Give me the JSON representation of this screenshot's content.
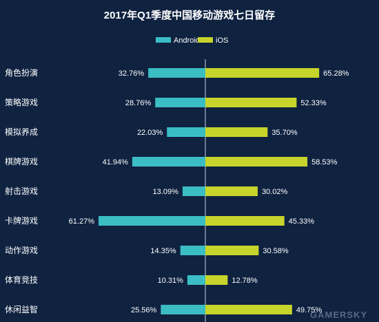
{
  "colors": {
    "background": "#0f2240",
    "android": "#3bbdc4",
    "ios": "#c7d42b",
    "axis": "#c9d3de"
  },
  "chart_data": {
    "type": "bar",
    "orientation": "diverging-horizontal",
    "title": "2017年Q1季度中国移动游戏七日留存",
    "legend_position": "top-center",
    "categories": [
      "角色扮演",
      "策略游戏",
      "模拟养成",
      "棋牌游戏",
      "射击游戏",
      "卡牌游戏",
      "动作游戏",
      "体育竞技",
      "休闲益智"
    ],
    "series": [
      {
        "name": "Android",
        "side": "left",
        "values": [
          32.76,
          28.76,
          22.03,
          41.94,
          13.09,
          61.27,
          14.35,
          10.31,
          25.56
        ],
        "labels": [
          "32.76%",
          "28.76%",
          "22.03%",
          "41.94%",
          "13.09%",
          "61.27%",
          "14.35%",
          "10.31%",
          "25.56%"
        ]
      },
      {
        "name": "iOS",
        "side": "right",
        "values": [
          65.28,
          52.33,
          35.7,
          58.53,
          30.02,
          45.33,
          30.58,
          12.78,
          49.75
        ],
        "labels": [
          "65.28%",
          "52.33%",
          "35.70%",
          "58.53%",
          "30.02%",
          "45.33%",
          "30.58%",
          "12.78%",
          "49.75%"
        ]
      }
    ],
    "grid": false
  },
  "watermark": "GAMERSKY"
}
